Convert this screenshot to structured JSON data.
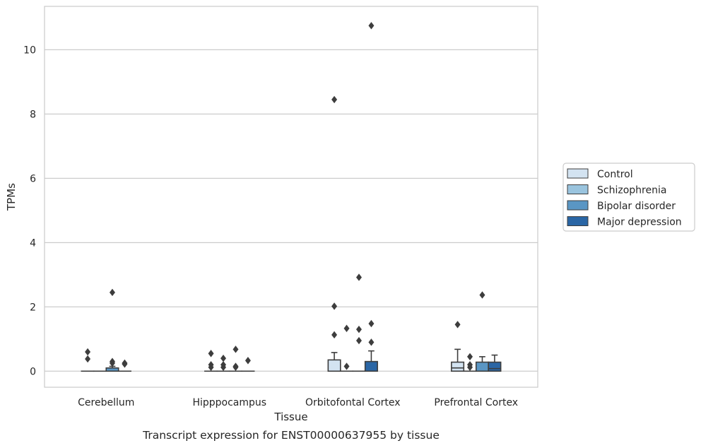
{
  "chart_data": {
    "type": "box",
    "title": "",
    "caption": "Transcript expression for ENST00000637955 by tissue",
    "xlabel": "Tissue",
    "ylabel": "TPMs",
    "ylim": [
      -0.5,
      11.35
    ],
    "yticks": [
      0,
      2,
      4,
      6,
      8,
      10
    ],
    "grid": "horizontal",
    "legend_position": "right",
    "categories": [
      "Cerebellum",
      "Hipppocampus",
      "Orbitofontal Cortex",
      "Prefrontal Cortex"
    ],
    "series": [
      {
        "name": "Control",
        "color": "#d3e3f1",
        "boxes": [
          {
            "q1": 0,
            "median": 0,
            "q3": 0,
            "whisker_low": 0,
            "whisker_high": 0,
            "outliers": [
              0.6,
              0.38
            ]
          },
          {
            "q1": 0,
            "median": 0,
            "q3": 0,
            "whisker_low": 0,
            "whisker_high": 0,
            "outliers": [
              0.55,
              0.2,
              0.12
            ]
          },
          {
            "q1": 0,
            "median": 0,
            "q3": 0.35,
            "whisker_low": 0,
            "whisker_high": 0.58,
            "outliers": [
              8.45,
              2.02,
              1.13
            ]
          },
          {
            "q1": 0,
            "median": 0.1,
            "q3": 0.28,
            "whisker_low": 0,
            "whisker_high": 0.68,
            "outliers": [
              1.45
            ]
          }
        ]
      },
      {
        "name": "Schizophrenia",
        "color": "#9ac4de",
        "boxes": [
          {
            "q1": 0,
            "median": 0,
            "q3": 0,
            "whisker_low": 0,
            "whisker_high": 0,
            "outliers": []
          },
          {
            "q1": 0,
            "median": 0,
            "q3": 0,
            "whisker_low": 0,
            "whisker_high": 0,
            "outliers": [
              0.4,
              0.2,
              0.12
            ]
          },
          {
            "q1": 0,
            "median": 0,
            "q3": 0,
            "whisker_low": 0,
            "whisker_high": 0,
            "outliers": [
              1.33,
              0.15
            ]
          },
          {
            "q1": 0,
            "median": 0,
            "q3": 0,
            "whisker_low": 0,
            "whisker_high": 0,
            "outliers": [
              0.45,
              0.2,
              0.12
            ]
          }
        ]
      },
      {
        "name": "Bipolar disorder",
        "color": "#5a96c4",
        "boxes": [
          {
            "q1": 0,
            "median": 0,
            "q3": 0.1,
            "whisker_low": 0,
            "whisker_high": 0.15,
            "outliers": [
              2.45,
              0.3,
              0.25
            ]
          },
          {
            "q1": 0,
            "median": 0,
            "q3": 0,
            "whisker_low": 0,
            "whisker_high": 0,
            "outliers": [
              0.68,
              0.15,
              0.12
            ]
          },
          {
            "q1": 0,
            "median": 0,
            "q3": 0,
            "whisker_low": 0,
            "whisker_high": 0,
            "outliers": [
              2.92,
              1.3,
              0.95
            ]
          },
          {
            "q1": 0,
            "median": 0,
            "q3": 0.28,
            "whisker_low": 0,
            "whisker_high": 0.45,
            "outliers": [
              2.37
            ]
          }
        ]
      },
      {
        "name": "Major depression",
        "color": "#2a66a5",
        "boxes": [
          {
            "q1": 0,
            "median": 0,
            "q3": 0,
            "whisker_low": 0,
            "whisker_high": 0,
            "outliers": [
              0.25,
              0.22
            ]
          },
          {
            "q1": 0,
            "median": 0,
            "q3": 0,
            "whisker_low": 0,
            "whisker_high": 0,
            "outliers": [
              0.33
            ]
          },
          {
            "q1": 0,
            "median": 0,
            "q3": 0.3,
            "whisker_low": 0,
            "whisker_high": 0.63,
            "outliers": [
              10.75,
              1.48,
              0.9
            ]
          },
          {
            "q1": 0,
            "median": 0.08,
            "q3": 0.28,
            "whisker_low": 0,
            "whisker_high": 0.5,
            "outliers": []
          }
        ]
      }
    ]
  }
}
